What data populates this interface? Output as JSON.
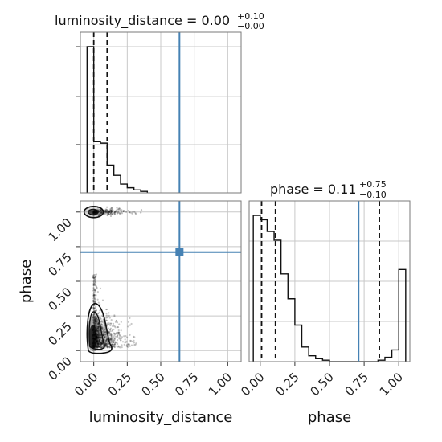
{
  "chart_data": [
    {
      "type": "histogram",
      "panel": "luminosity_distance-1d",
      "title": {
        "main": "luminosity_distance = 0.00",
        "sup": "+0.10",
        "sub": "−0.00"
      },
      "xlim": [
        -0.1,
        1.1
      ],
      "bin_edges": [
        -0.05,
        0.0,
        0.05,
        0.1,
        0.15,
        0.2,
        0.25,
        0.3,
        0.35,
        0.4
      ],
      "counts": [
        1.0,
        0.35,
        0.34,
        0.19,
        0.12,
        0.06,
        0.035,
        0.02,
        0.01
      ],
      "quantiles": [
        0.0,
        0.1
      ],
      "truth": 0.64,
      "xticks": [
        0.0,
        0.25,
        0.5,
        0.75,
        1.0
      ],
      "grid": true
    },
    {
      "type": "scatter",
      "panel": "luminosity_distance-vs-phase-2d",
      "xlabel": "luminosity_distance",
      "ylabel": "phase",
      "xlim": [
        -0.1,
        1.1
      ],
      "ylim": [
        -0.08,
        1.08
      ],
      "xticks": [
        "0.00",
        "0.25",
        "0.50",
        "0.75",
        "1.00"
      ],
      "yticks": [
        "0.00",
        "0.25",
        "0.50",
        "0.75",
        "1.00"
      ],
      "truth": {
        "x": 0.64,
        "y": 0.71
      },
      "modes": [
        {
          "x": 0.0,
          "y": 1.0,
          "sx": 0.02,
          "sy": 0.02
        },
        {
          "x": 0.0,
          "y": 0.1,
          "sx": 0.05,
          "sy": 0.1
        }
      ],
      "grid": true
    },
    {
      "type": "histogram",
      "panel": "phase-1d",
      "title": {
        "main": "phase = 0.11",
        "sup": "+0.75",
        "sub": "−0.10"
      },
      "xlabel": "phase",
      "xlim": [
        -0.08,
        1.08
      ],
      "xticks": [
        "0.00",
        "0.25",
        "0.50",
        "0.75",
        "1.00"
      ],
      "bin_edges": [
        -0.05,
        0.0,
        0.05,
        0.1,
        0.15,
        0.2,
        0.25,
        0.3,
        0.35,
        0.4,
        0.45,
        0.5,
        0.55,
        0.6,
        0.65,
        0.7,
        0.75,
        0.8,
        0.85,
        0.9,
        0.95,
        1.0,
        1.05
      ],
      "counts": [
        1.0,
        0.97,
        0.89,
        0.83,
        0.6,
        0.43,
        0.25,
        0.1,
        0.04,
        0.02,
        0.01,
        0.0,
        0.0,
        0.0,
        0.0,
        0.0,
        0.0,
        0.0,
        0.01,
        0.03,
        0.08,
        0.63
      ],
      "quantiles": [
        0.01,
        0.11,
        0.86
      ],
      "truth": 0.71,
      "grid": true
    }
  ]
}
